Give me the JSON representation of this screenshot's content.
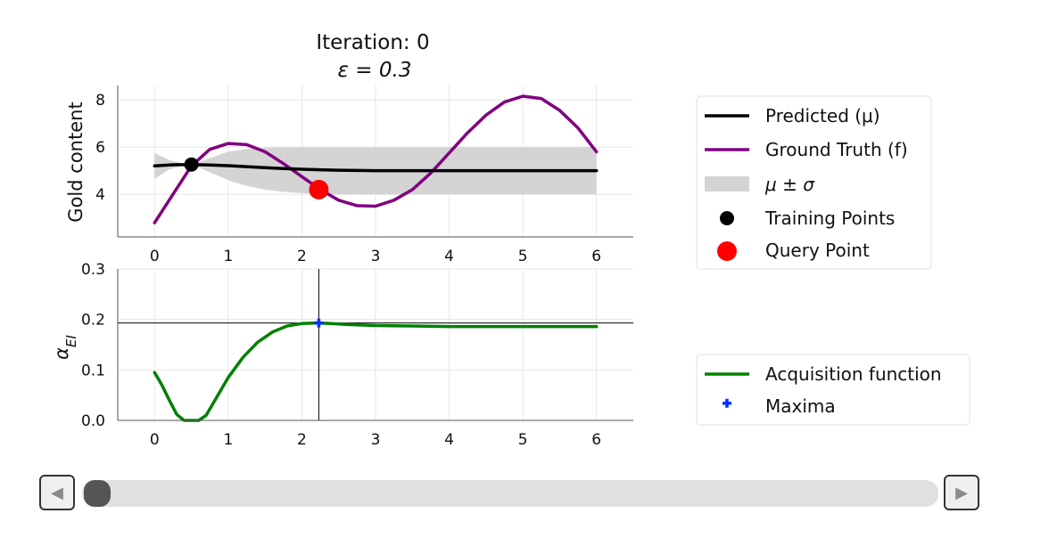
{
  "chart_data": [
    {
      "type": "line",
      "title": "Iteration: 0",
      "subtitle": "ε = 0.3",
      "xlabel": "",
      "ylabel": "Gold content",
      "xlim": [
        -0.5,
        6.5
      ],
      "ylim": [
        2.2,
        8.6
      ],
      "xticks": [
        0,
        1,
        2,
        3,
        4,
        5,
        6
      ],
      "yticks": [
        4,
        6,
        8
      ],
      "grid": true,
      "legend": "right",
      "series": [
        {
          "name": "Predicted (μ)",
          "color": "#000000",
          "x": [
            0,
            0.25,
            0.5,
            0.75,
            1.0,
            1.25,
            1.5,
            1.75,
            2.0,
            2.25,
            2.5,
            2.75,
            3.0,
            3.5,
            4.0,
            4.5,
            5.0,
            5.5,
            6.0
          ],
          "y": [
            5.2,
            5.25,
            5.26,
            5.24,
            5.21,
            5.17,
            5.13,
            5.09,
            5.06,
            5.04,
            5.02,
            5.01,
            5.0,
            5.0,
            5.0,
            5.0,
            5.0,
            5.0,
            5.0
          ]
        },
        {
          "name": "Ground Truth (f)",
          "color": "#800080",
          "x": [
            0,
            0.25,
            0.5,
            0.75,
            1.0,
            1.25,
            1.5,
            1.75,
            2.0,
            2.25,
            2.5,
            2.75,
            3.0,
            3.25,
            3.5,
            3.75,
            4.0,
            4.25,
            4.5,
            4.75,
            5.0,
            5.25,
            5.5,
            5.75,
            6.0
          ],
          "y": [
            2.8,
            4.0,
            5.2,
            5.9,
            6.15,
            6.1,
            5.8,
            5.3,
            4.75,
            4.2,
            3.75,
            3.52,
            3.5,
            3.75,
            4.2,
            4.9,
            5.75,
            6.6,
            7.35,
            7.9,
            8.15,
            8.05,
            7.55,
            6.8,
            5.8
          ]
        }
      ],
      "band": {
        "name": "μ ± σ",
        "color": "#d4d4d4",
        "x": [
          0,
          0.2,
          0.4,
          0.5,
          0.7,
          1.0,
          1.25,
          1.5,
          1.75,
          2.0,
          2.5,
          3.0,
          3.5,
          4.0,
          5.0,
          6.0
        ],
        "lower": [
          4.65,
          5.05,
          5.22,
          5.26,
          5.0,
          4.6,
          4.35,
          4.2,
          4.1,
          4.05,
          4.0,
          4.0,
          4.0,
          4.0,
          4.0,
          4.0
        ],
        "upper": [
          5.75,
          5.45,
          5.3,
          5.26,
          5.48,
          5.8,
          5.92,
          5.97,
          5.99,
          6.0,
          6.0,
          6.0,
          6.0,
          6.0,
          6.0,
          6.0
        ]
      },
      "training_points": {
        "name": "Training Points",
        "color": "#000000",
        "x": [
          0.5
        ],
        "y": [
          5.26
        ]
      },
      "query_point": {
        "name": "Query Point",
        "color": "#ff0000",
        "x": [
          2.23
        ],
        "y": [
          4.2
        ]
      }
    },
    {
      "type": "line",
      "title": "",
      "xlabel": "",
      "ylabel": "α_EI",
      "xlim": [
        -0.5,
        6.5
      ],
      "ylim": [
        0.0,
        0.3
      ],
      "xticks": [
        0,
        1,
        2,
        3,
        4,
        5,
        6
      ],
      "yticks": [
        0.0,
        0.1,
        0.2,
        0.3
      ],
      "ytick_labels": [
        "0.0",
        "0.1",
        "0.2",
        "0.3"
      ],
      "grid": true,
      "legend": "right",
      "series": [
        {
          "name": "Acquisition function",
          "color": "#008000",
          "x": [
            0,
            0.1,
            0.2,
            0.3,
            0.4,
            0.5,
            0.6,
            0.7,
            0.8,
            1.0,
            1.2,
            1.4,
            1.6,
            1.8,
            2.0,
            2.2,
            2.4,
            2.6,
            3.0,
            3.5,
            4.0,
            4.5,
            5.0,
            5.5,
            6.0
          ],
          "y": [
            0.095,
            0.07,
            0.04,
            0.012,
            0.0,
            0.0,
            0.0,
            0.01,
            0.035,
            0.085,
            0.125,
            0.155,
            0.175,
            0.187,
            0.192,
            0.193,
            0.192,
            0.19,
            0.188,
            0.187,
            0.186,
            0.186,
            0.186,
            0.186,
            0.186
          ]
        }
      ],
      "maxima": {
        "name": "Maxima",
        "color": "#0033ff",
        "x": [
          2.23
        ],
        "y": [
          0.193
        ]
      },
      "crosshair": {
        "x": 2.23,
        "y": 0.193,
        "color": "#000000"
      }
    }
  ],
  "slider": {
    "prev_label": "◀",
    "next_label": "▶",
    "value": 0,
    "min": 0
  }
}
